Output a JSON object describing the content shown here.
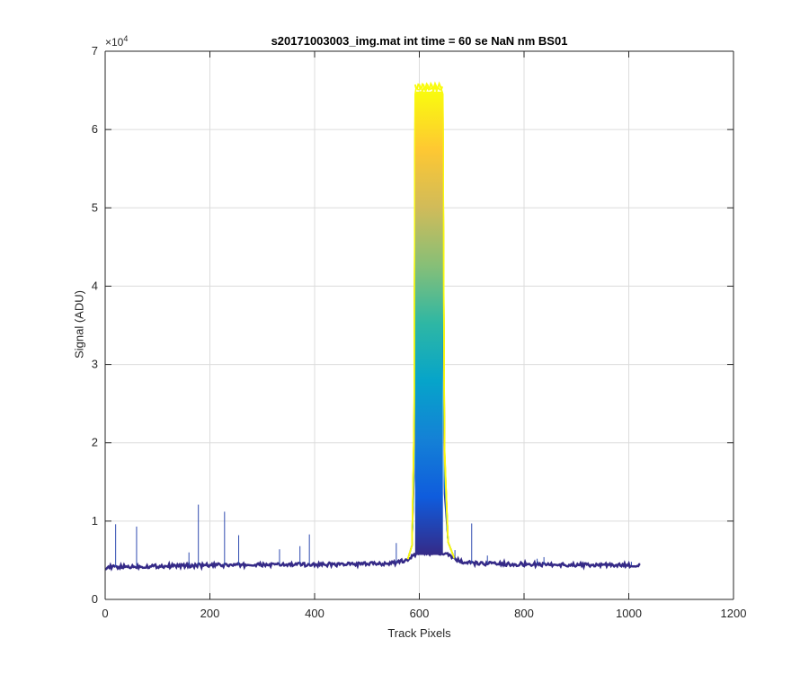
{
  "chart_data": {
    "type": "line",
    "title": "s20171003003_img.mat int time = 60 se  NaN nm BS01",
    "xlabel": "Track Pixels",
    "ylabel": "Signal (ADU)",
    "y_exponent_label": "×10",
    "y_exponent_power": "4",
    "xlim": [
      0,
      1200
    ],
    "ylim": [
      0,
      70000
    ],
    "xticks": [
      0,
      200,
      400,
      600,
      800,
      1000,
      1200
    ],
    "yticks": [
      0,
      10000,
      20000,
      30000,
      40000,
      50000,
      60000,
      70000
    ],
    "ytick_labels": [
      "0",
      "1",
      "2",
      "3",
      "4",
      "5",
      "6",
      "7"
    ],
    "grid": true,
    "colormap": "parula",
    "colormap_stops": [
      "#352a87",
      "#0f5cdd",
      "#1481d6",
      "#06a4ca",
      "#2eb7a4",
      "#87bf77",
      "#d1bb59",
      "#fec832",
      "#f9fb0e"
    ],
    "series_count": 20,
    "baseline": {
      "x": [
        0,
        100,
        200,
        300,
        400,
        500,
        560,
        580,
        600,
        650,
        680,
        700,
        800,
        900,
        1023
      ],
      "y": [
        4100,
        4250,
        4350,
        4400,
        4450,
        4500,
        4700,
        5200,
        6000,
        5800,
        4800,
        4600,
        4500,
        4400,
        4350
      ]
    },
    "plateau": {
      "x_start": 592,
      "x_end": 645,
      "peak_min": 45000,
      "peak_max": 65500
    },
    "spikes": [
      {
        "x": 20,
        "y": 9600
      },
      {
        "x": 60,
        "y": 9300
      },
      {
        "x": 160,
        "y": 6000
      },
      {
        "x": 178,
        "y": 12100
      },
      {
        "x": 228,
        "y": 11200
      },
      {
        "x": 255,
        "y": 8200
      },
      {
        "x": 333,
        "y": 6400
      },
      {
        "x": 372,
        "y": 6800
      },
      {
        "x": 390,
        "y": 8300
      },
      {
        "x": 556,
        "y": 7200
      },
      {
        "x": 668,
        "y": 6300
      },
      {
        "x": 700,
        "y": 9700
      },
      {
        "x": 730,
        "y": 5600
      },
      {
        "x": 825,
        "y": 5200
      },
      {
        "x": 838,
        "y": 5400
      },
      {
        "x": 1005,
        "y": 4800
      }
    ]
  }
}
